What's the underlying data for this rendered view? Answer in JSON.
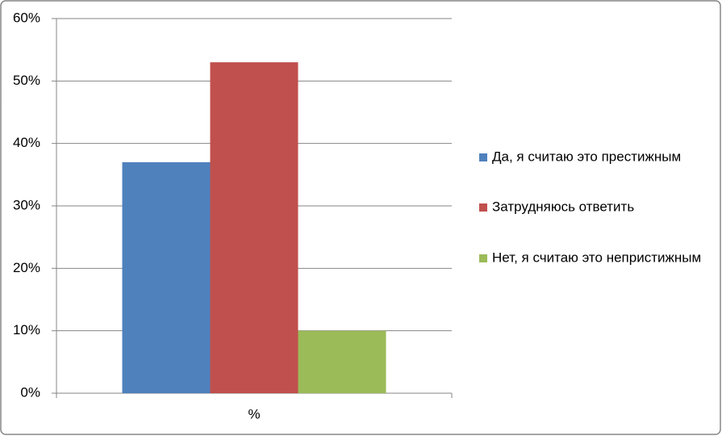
{
  "chart_data": {
    "type": "bar",
    "categories": [
      "%"
    ],
    "series": [
      {
        "name": "Да, я считаю это престижным",
        "color": "#4f81bd",
        "values": [
          37
        ]
      },
      {
        "name": "Затрудняюсь ответить",
        "color": "#c0504d",
        "values": [
          53
        ]
      },
      {
        "name": "Нет, я считаю это непристижным",
        "color": "#9bbb59",
        "values": [
          10
        ]
      }
    ],
    "ylim": [
      0,
      60
    ],
    "yticks": [
      {
        "value": 0,
        "label": "0%"
      },
      {
        "value": 10,
        "label": "10%"
      },
      {
        "value": 20,
        "label": "20%"
      },
      {
        "value": 30,
        "label": "30%"
      },
      {
        "value": 40,
        "label": "40%"
      },
      {
        "value": 50,
        "label": "50%"
      },
      {
        "value": 60,
        "label": "60%"
      }
    ],
    "grid": true,
    "legend": "right"
  }
}
